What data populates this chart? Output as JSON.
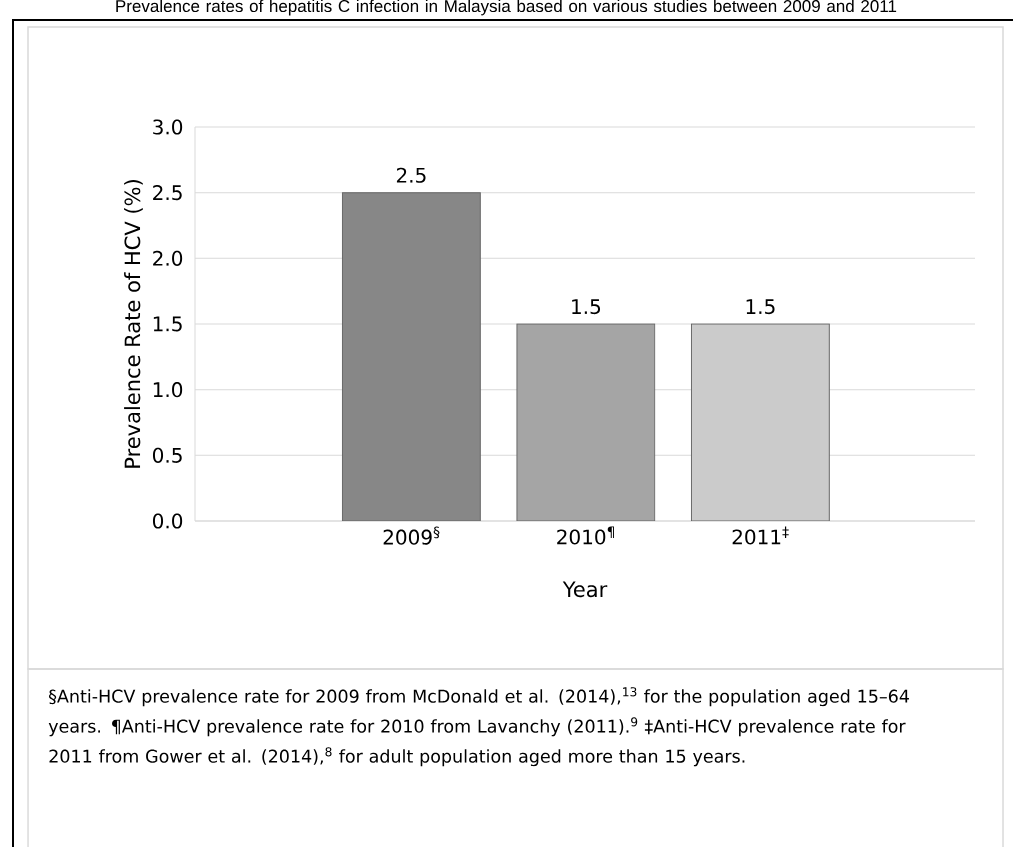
{
  "chart_data": {
    "type": "bar",
    "title": "Prevalence rates of hepatitis C infection in Malaysia based on various studies between 2009 and 2011",
    "xlabel": "Year",
    "ylabel": "Prevalence Rate of HCV (%)",
    "categories": [
      "2009$^{§}$",
      "2010$^{¶}$",
      "2011$^{‡}$"
    ],
    "values": [
      2.5,
      1.5,
      1.5
    ],
    "colors": [
      "#878787",
      "#a5a5a5",
      "#cbcbcb"
    ],
    "ylim": [
      0,
      3
    ],
    "yticks": [
      {
        "value": 0,
        "label": "0.0"
      },
      0.5,
      {
        "value": 1,
        "label": "1.0"
      },
      1.5,
      {
        "value": 2,
        "label": "2.0"
      },
      2.5,
      {
        "value": 3,
        "label": "3.0"
      }
    ],
    "grid": "y",
    "data_labels": true,
    "annotations": [
      "§Anti-HCV prevalence rate for 2009 from McDonald et al. (2014),$^{13}$ for the population aged 15–64 years. ¶Anti-HCV prevalence rate for 2010 from Lavanchy (2011).$^{9}$ ‡Anti-HCV prevalence rate for 2011 from Gower et al. (2014),$^{8}$ for adult population aged more than 15 years."
    ]
  }
}
